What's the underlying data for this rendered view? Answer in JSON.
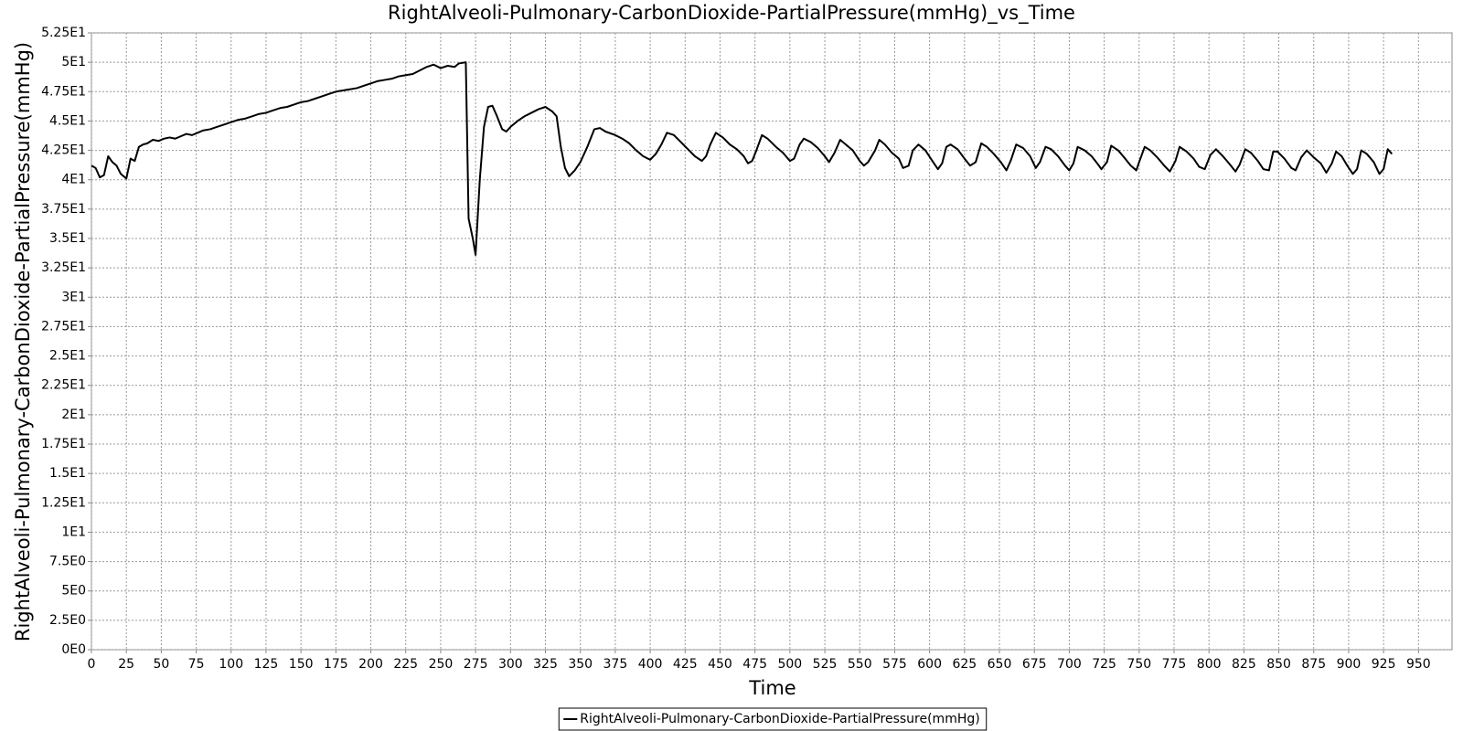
{
  "chart_data": {
    "type": "line",
    "title": "RightAlveoli-Pulmonary-CarbonDioxide-PartialPressure(mmHg)_vs_Time",
    "x_label": "Time",
    "y_label": "RightAlveoli-Pulmonary-CarbonDioxide-PartialPressure(mmHg)",
    "grid": true,
    "legend": "bottom",
    "xlim": [
      0,
      974
    ],
    "ylim": [
      0,
      52.5
    ],
    "xticks": [
      0,
      25,
      50,
      75,
      100,
      125,
      150,
      175,
      200,
      225,
      250,
      275,
      300,
      325,
      350,
      375,
      400,
      425,
      450,
      475,
      500,
      525,
      550,
      575,
      600,
      625,
      650,
      675,
      700,
      725,
      750,
      775,
      800,
      825,
      850,
      875,
      900,
      925,
      950
    ],
    "yticks": [
      {
        "value": 0,
        "label": "0E0"
      },
      {
        "value": 2.5,
        "label": "2.5E0"
      },
      {
        "value": 5,
        "label": "5E0"
      },
      {
        "value": 7.5,
        "label": "7.5E0"
      },
      {
        "value": 10,
        "label": "1E1"
      },
      {
        "value": 12.5,
        "label": "1.25E1"
      },
      {
        "value": 15,
        "label": "1.5E1"
      },
      {
        "value": 17.5,
        "label": "1.75E1"
      },
      {
        "value": 20,
        "label": "2E1"
      },
      {
        "value": 22.5,
        "label": "2.25E1"
      },
      {
        "value": 25,
        "label": "2.5E1"
      },
      {
        "value": 27.5,
        "label": "2.75E1"
      },
      {
        "value": 30,
        "label": "3E1"
      },
      {
        "value": 32.5,
        "label": "3.25E1"
      },
      {
        "value": 35,
        "label": "3.5E1"
      },
      {
        "value": 37.5,
        "label": "3.75E1"
      },
      {
        "value": 40,
        "label": "4E1"
      },
      {
        "value": 42.5,
        "label": "4.25E1"
      },
      {
        "value": 45,
        "label": "4.5E1"
      },
      {
        "value": 47.5,
        "label": "4.75E1"
      },
      {
        "value": 50,
        "label": "5E1"
      },
      {
        "value": 52.5,
        "label": "5.25E1"
      }
    ],
    "x": [
      0,
      3,
      6,
      9,
      12,
      15,
      18,
      21,
      25,
      28,
      31,
      34,
      37,
      40,
      44,
      48,
      52,
      56,
      60,
      64,
      68,
      72,
      76,
      80,
      85,
      90,
      95,
      100,
      105,
      110,
      115,
      120,
      125,
      130,
      135,
      140,
      145,
      150,
      155,
      160,
      165,
      170,
      175,
      180,
      185,
      190,
      195,
      200,
      205,
      210,
      215,
      220,
      225,
      230,
      235,
      240,
      245,
      250,
      255,
      260,
      263,
      268,
      270,
      273,
      275,
      278,
      281,
      284,
      287,
      290,
      294,
      297,
      300,
      305,
      310,
      315,
      320,
      325,
      330,
      333,
      336,
      339,
      342,
      346,
      350,
      355,
      360,
      364,
      368,
      375,
      380,
      385,
      390,
      395,
      400,
      404,
      408,
      412,
      417,
      422,
      427,
      432,
      437,
      440,
      443,
      447,
      452,
      457,
      462,
      467,
      470,
      473,
      476,
      480,
      484,
      490,
      495,
      500,
      503,
      507,
      510,
      515,
      520,
      525,
      528,
      532,
      536,
      540,
      545,
      550,
      553,
      556,
      561,
      564,
      568,
      573,
      578,
      581,
      585,
      588,
      592,
      597,
      602,
      606,
      609,
      612,
      615,
      620,
      625,
      629,
      633,
      637,
      641,
      646,
      651,
      655,
      658,
      662,
      667,
      672,
      676,
      679,
      683,
      687,
      692,
      697,
      700,
      703,
      706,
      711,
      716,
      720,
      723,
      727,
      730,
      735,
      740,
      744,
      748,
      750,
      754,
      758,
      763,
      768,
      772,
      776,
      779,
      784,
      789,
      793,
      797,
      801,
      805,
      810,
      815,
      819,
      822,
      826,
      830,
      835,
      839,
      843,
      846,
      849,
      854,
      859,
      862,
      866,
      870,
      875,
      880,
      884,
      888,
      891,
      895,
      899,
      903,
      906,
      909,
      913,
      918,
      922,
      925,
      928,
      931
    ],
    "series": [
      {
        "name": "RightAlveoli-Pulmonary-CarbonDioxide-PartialPressure(mmHg)",
        "color": "#000000",
        "values": [
          41.2,
          41.0,
          40.2,
          40.4,
          42.0,
          41.5,
          41.2,
          40.5,
          40.1,
          41.8,
          41.6,
          42.8,
          43.0,
          43.1,
          43.4,
          43.3,
          43.5,
          43.6,
          43.5,
          43.7,
          43.9,
          43.8,
          44.0,
          44.2,
          44.3,
          44.5,
          44.7,
          44.9,
          45.1,
          45.2,
          45.4,
          45.6,
          45.7,
          45.9,
          46.1,
          46.2,
          46.4,
          46.6,
          46.7,
          46.9,
          47.1,
          47.3,
          47.5,
          47.6,
          47.7,
          47.8,
          48.0,
          48.2,
          48.4,
          48.5,
          48.6,
          48.8,
          48.9,
          49.0,
          49.3,
          49.6,
          49.8,
          49.5,
          49.7,
          49.6,
          49.9,
          50.0,
          36.7,
          35.0,
          33.6,
          40.0,
          44.5,
          46.2,
          46.3,
          45.5,
          44.3,
          44.1,
          44.5,
          45.0,
          45.4,
          45.7,
          46.0,
          46.2,
          45.8,
          45.4,
          42.8,
          41.0,
          40.3,
          40.8,
          41.5,
          42.8,
          44.3,
          44.4,
          44.1,
          43.8,
          43.5,
          43.1,
          42.5,
          42.0,
          41.7,
          42.2,
          43.0,
          44.0,
          43.8,
          43.2,
          42.6,
          42.0,
          41.6,
          42.0,
          43.0,
          44.0,
          43.6,
          43.0,
          42.6,
          42.0,
          41.4,
          41.6,
          42.5,
          43.8,
          43.5,
          42.8,
          42.3,
          41.6,
          41.8,
          43.0,
          43.5,
          43.2,
          42.7,
          42.0,
          41.5,
          42.3,
          43.4,
          43.0,
          42.5,
          41.6,
          41.2,
          41.5,
          42.5,
          43.4,
          43.0,
          42.3,
          41.8,
          41.0,
          41.2,
          42.5,
          43.0,
          42.5,
          41.6,
          40.9,
          41.4,
          42.8,
          43.0,
          42.6,
          41.8,
          41.2,
          41.5,
          43.1,
          42.8,
          42.2,
          41.5,
          40.8,
          41.6,
          43.0,
          42.7,
          42.0,
          41.0,
          41.5,
          42.8,
          42.6,
          42.0,
          41.2,
          40.8,
          41.4,
          42.8,
          42.5,
          42.0,
          41.4,
          40.9,
          41.5,
          42.9,
          42.5,
          41.8,
          41.2,
          40.8,
          41.5,
          42.8,
          42.5,
          41.9,
          41.2,
          40.7,
          41.6,
          42.8,
          42.4,
          41.8,
          41.1,
          40.9,
          42.1,
          42.6,
          42.0,
          41.3,
          40.7,
          41.3,
          42.6,
          42.3,
          41.6,
          40.9,
          40.8,
          42.4,
          42.4,
          41.8,
          41.0,
          40.8,
          41.9,
          42.5,
          41.9,
          41.4,
          40.6,
          41.4,
          42.4,
          42.0,
          41.2,
          40.5,
          40.9,
          42.5,
          42.2,
          41.5,
          40.5,
          40.9,
          42.6,
          42.2
        ]
      }
    ]
  }
}
